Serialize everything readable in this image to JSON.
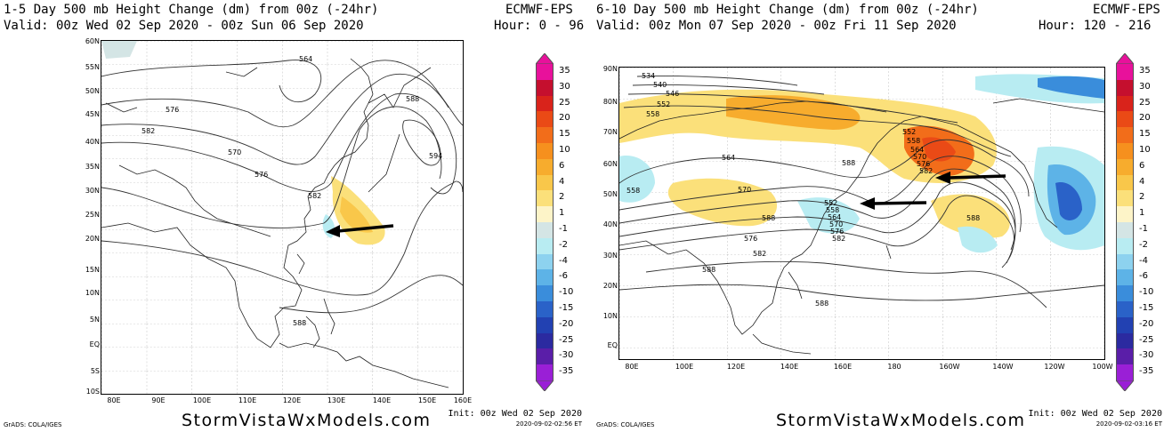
{
  "left": {
    "title_line1": "1-5 Day 500 mb Height Change (dm) from 00z (-24hr)",
    "model": "ECMWF-EPS",
    "title_line2": "Valid: 00z Wed 02 Sep 2020 - 00z Sun 06 Sep 2020",
    "hour": "Hour: 0 - 96",
    "lat_labels": [
      "60N",
      "55N",
      "50N",
      "45N",
      "40N",
      "35N",
      "30N",
      "25N",
      "20N",
      "15N",
      "10N",
      "5N",
      "EQ",
      "5S",
      "10S"
    ],
    "lon_labels": [
      "80E",
      "90E",
      "100E",
      "110E",
      "120E",
      "130E",
      "140E",
      "150E",
      "160E"
    ],
    "contour_labels": [
      "564",
      "576",
      "582",
      "570",
      "576",
      "582",
      "588",
      "594",
      "588"
    ],
    "site": "StormVistaWxModels.com",
    "init": "Init: 00z Wed 02 Sep 2020",
    "init_time": "2020-09-02-02:56 ET",
    "grads": "GrADS: COLA/IGES"
  },
  "right": {
    "title_line1": "6-10 Day 500 mb Height Change (dm) from 00z (-24hr)",
    "model": "ECMWF-EPS",
    "title_line2": "Valid: 00z Mon 07 Sep 2020 - 00z Fri 11 Sep 2020",
    "hour": "Hour: 120 - 216",
    "lat_labels": [
      "90N",
      "80N",
      "70N",
      "60N",
      "50N",
      "40N",
      "30N",
      "20N",
      "10N",
      "EQ"
    ],
    "lon_labels": [
      "80E",
      "100E",
      "120E",
      "140E",
      "160E",
      "180",
      "160W",
      "140W",
      "120W",
      "100W"
    ],
    "contour_labels": [
      "534",
      "540",
      "546",
      "552",
      "558",
      "564",
      "558",
      "570",
      "552",
      "558",
      "564",
      "570",
      "576",
      "582",
      "588",
      "552",
      "558",
      "564",
      "570",
      "576",
      "582",
      "588",
      "588",
      "588",
      "588",
      "576",
      "582"
    ],
    "site": "StormVistaWxModels.com",
    "init": "Init: 00z Wed 02 Sep 2020",
    "init_time": "2020-09-02-03:16 ET",
    "grads": "GrADS: COLA/IGES"
  },
  "colorbar": {
    "labels": [
      "35",
      "30",
      "25",
      "20",
      "15",
      "10",
      "6",
      "4",
      "2",
      "1",
      "-1",
      "-2",
      "-4",
      "-6",
      "-10",
      "-15",
      "-20",
      "-25",
      "-30",
      "-35"
    ],
    "colors": [
      "#e8119b",
      "#c50f2e",
      "#d9231b",
      "#ea4a16",
      "#f26d1a",
      "#f6901e",
      "#f7ac2d",
      "#f9c74a",
      "#fbe07a",
      "#fdf4c8",
      "#d4e5e5",
      "#b8ecf2",
      "#8dd2ef",
      "#5db3e7",
      "#3a8ddb",
      "#2a62c8",
      "#2241b2",
      "#2b2aa0",
      "#5a1ea8",
      "#9a1fd6"
    ]
  }
}
